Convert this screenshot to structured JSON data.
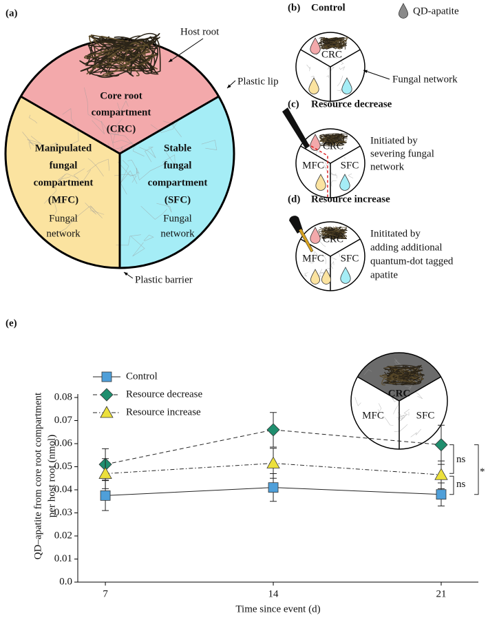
{
  "panels": {
    "a": {
      "label": "(a)",
      "host_root": "Host root",
      "plastic_lip": "Plastic lip",
      "plastic_barrier": "Plastic barrier",
      "core": [
        "Core root",
        "compartment",
        "(CRC)"
      ],
      "manipulated": [
        "Manipulated",
        "fungal",
        "compartment",
        "(MFC)"
      ],
      "stable": [
        "Stable",
        "fungal",
        "compartment",
        "(SFC)"
      ],
      "mfc_network": [
        "Fungal",
        "network"
      ],
      "sfc_network": [
        "Fungal",
        "network"
      ]
    },
    "b": {
      "label": "(b)",
      "title": "Control",
      "legend": "QD-apatite",
      "crc": "CRC",
      "network": "Fungal network"
    },
    "c": {
      "label": "(c)",
      "title": "Resource decrease",
      "crc": "CRC",
      "mfc": "MFC",
      "sfc": "SFC",
      "note": [
        "Initiated by",
        "severing fungal",
        "network"
      ]
    },
    "d": {
      "label": "(d)",
      "title": "Resource increase",
      "crc": "CRC",
      "mfc": "MFC",
      "sfc": "SFC",
      "note": [
        "Inititated by",
        "adding additional",
        "quantum-dot tagged",
        "apatite"
      ]
    }
  },
  "chart_data": {
    "type": "line",
    "panel_label": "(e)",
    "x_label": "Time since event (d)",
    "y_label": [
      "QD–apatite from core root compartment",
      "per host root (nmol)"
    ],
    "x": [
      7,
      14,
      21
    ],
    "xlim": [
      5.85,
      22.55
    ],
    "xticks": [
      7,
      14,
      21
    ],
    "ylim": [
      0,
      0.08
    ],
    "yticks": [
      {
        "value": 0,
        "label": "0.0"
      },
      0.01,
      0.02,
      0.03,
      0.04,
      0.05,
      0.06,
      0.07,
      0.08
    ],
    "series": [
      {
        "name": "Control",
        "color": "#4f9fd9",
        "marker": "square",
        "dash": "solid",
        "values": [
          0.0375,
          0.041,
          0.038
        ],
        "errors": [
          0.0065,
          0.006,
          0.005
        ]
      },
      {
        "name": "Resource decrease",
        "color": "#1f8e6e",
        "marker": "diamond",
        "dash": "dashed",
        "values": [
          0.051,
          0.066,
          0.0595
        ],
        "errors": [
          0.0068,
          0.0075,
          0.0085
        ]
      },
      {
        "name": "Resource increase",
        "color": "#ece03c",
        "marker": "triangle",
        "dash": "dashdot",
        "values": [
          0.047,
          0.0515,
          0.0465
        ],
        "errors": [
          0.0065,
          0.0065,
          0.006
        ]
      }
    ],
    "annotations": [
      "ns",
      "ns",
      "*"
    ],
    "inset": {
      "crc": "CRC",
      "mfc": "MFC",
      "sfc": "SFC"
    }
  }
}
